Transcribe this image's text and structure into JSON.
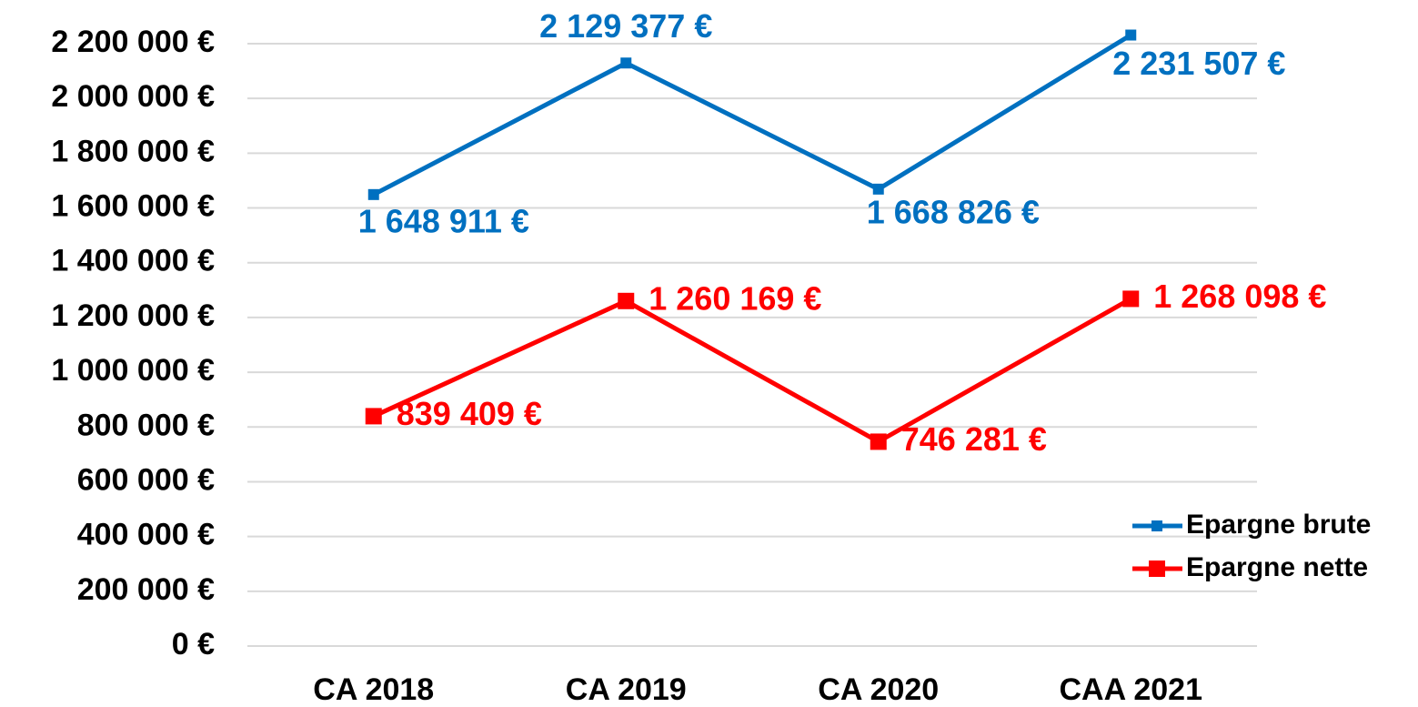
{
  "chart_data": {
    "type": "line",
    "categories": [
      "CA 2018",
      "CA 2019",
      "CA 2020",
      "CAA 2021"
    ],
    "series": [
      {
        "name": "Epargne brute",
        "color": "#0070c0",
        "values": [
          1648911,
          2129377,
          1668826,
          2231507
        ],
        "value_labels": [
          "1 648 911 €",
          "2 129 377 €",
          "1 668 826 €",
          "2 231 507 €"
        ]
      },
      {
        "name": "Epargne nette",
        "color": "#ff0000",
        "values": [
          839409,
          1260169,
          746281,
          1268098
        ],
        "value_labels": [
          "839 409 €",
          "1 260 169 €",
          "746 281 €",
          "1 268 098 €"
        ]
      }
    ],
    "ylim": [
      0,
      2200000
    ],
    "yticks": [
      {
        "value": 0,
        "label": "0 €"
      },
      {
        "value": 200000,
        "label": "200 000 €"
      },
      {
        "value": 400000,
        "label": "400 000 €"
      },
      {
        "value": 600000,
        "label": "600 000 €"
      },
      {
        "value": 800000,
        "label": "800 000 €"
      },
      {
        "value": 1000000,
        "label": "1 000 000 €"
      },
      {
        "value": 1200000,
        "label": "1 200 000 €"
      },
      {
        "value": 1400000,
        "label": "1 400 000 €"
      },
      {
        "value": 1600000,
        "label": "1 600 000 €"
      },
      {
        "value": 1800000,
        "label": "1 800 000 €"
      },
      {
        "value": 2000000,
        "label": "2 000 000 €"
      },
      {
        "value": 2200000,
        "label": "2 200 000 €"
      }
    ],
    "grid": true,
    "legend": "right"
  }
}
